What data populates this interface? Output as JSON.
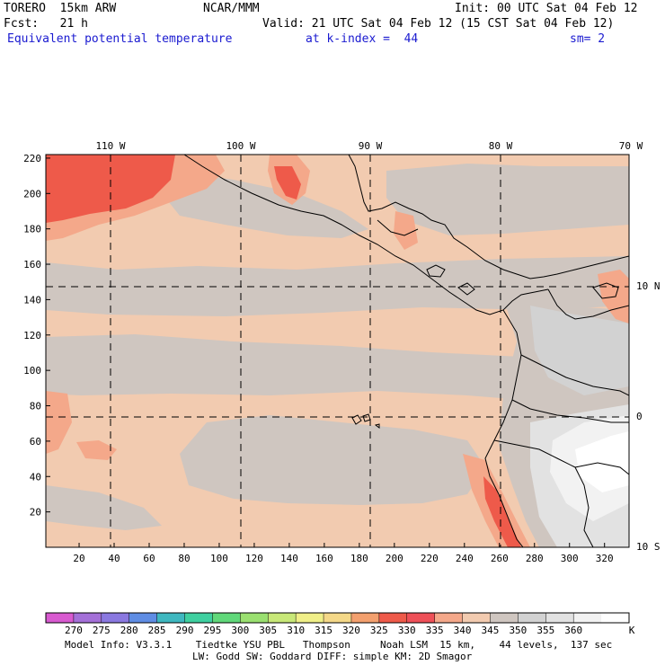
{
  "header": {
    "model": "TORERO  15km ARW",
    "center": "NCAR/MMM",
    "init": "Init: 00 UTC Sat 04 Feb 12",
    "fcst": "Fcst:   21 h",
    "valid": "Valid: 21 UTC Sat 04 Feb 12 (15 CST Sat 04 Feb 12)",
    "field": "Equivalent potential temperature",
    "level": "at k-index =  44",
    "smooth": "sm= 2"
  },
  "map": {
    "top_lon_labels": [
      "110 W",
      "100 W",
      "90 W",
      "80 W",
      "70 W"
    ],
    "right_lat_labels": [
      "10 N",
      "0",
      "10 S"
    ],
    "left_ticks": [
      "220",
      "200",
      "180",
      "160",
      "140",
      "120",
      "100",
      "80",
      "60",
      "40",
      "20"
    ],
    "bottom_ticks": [
      "20",
      "40",
      "60",
      "80",
      "100",
      "120",
      "140",
      "160",
      "180",
      "200",
      "220",
      "240",
      "260",
      "280",
      "300",
      "320"
    ]
  },
  "colorbar": {
    "unit": "K",
    "labels": [
      "270",
      "275",
      "280",
      "285",
      "290",
      "295",
      "300",
      "305",
      "310",
      "315",
      "320",
      "325",
      "330",
      "335",
      "340",
      "345",
      "350",
      "355",
      "360"
    ],
    "colors": [
      "#d85ad0",
      "#a470d8",
      "#8a78e0",
      "#5f8de4",
      "#3fb8c0",
      "#3fd0a0",
      "#60d87a",
      "#9ae070",
      "#c8e878",
      "#f0ef88",
      "#f4d888",
      "#f3a06e",
      "#ee5a4a",
      "#ee5058",
      "#f4a88a",
      "#f2cbb0",
      "#cfc6c0",
      "#d2d2d2",
      "#e2e2e2",
      "#f2f2f2",
      "#ffffff"
    ]
  },
  "footer": {
    "line1": "Model Info: V3.3.1    Tiedtke YSU PBL   Thompson     Noah LSM  15 km,    44 levels,  137 sec",
    "line2": "LW: Godd SW: Goddard DIFF: simple KM: 2D Smagor"
  }
}
